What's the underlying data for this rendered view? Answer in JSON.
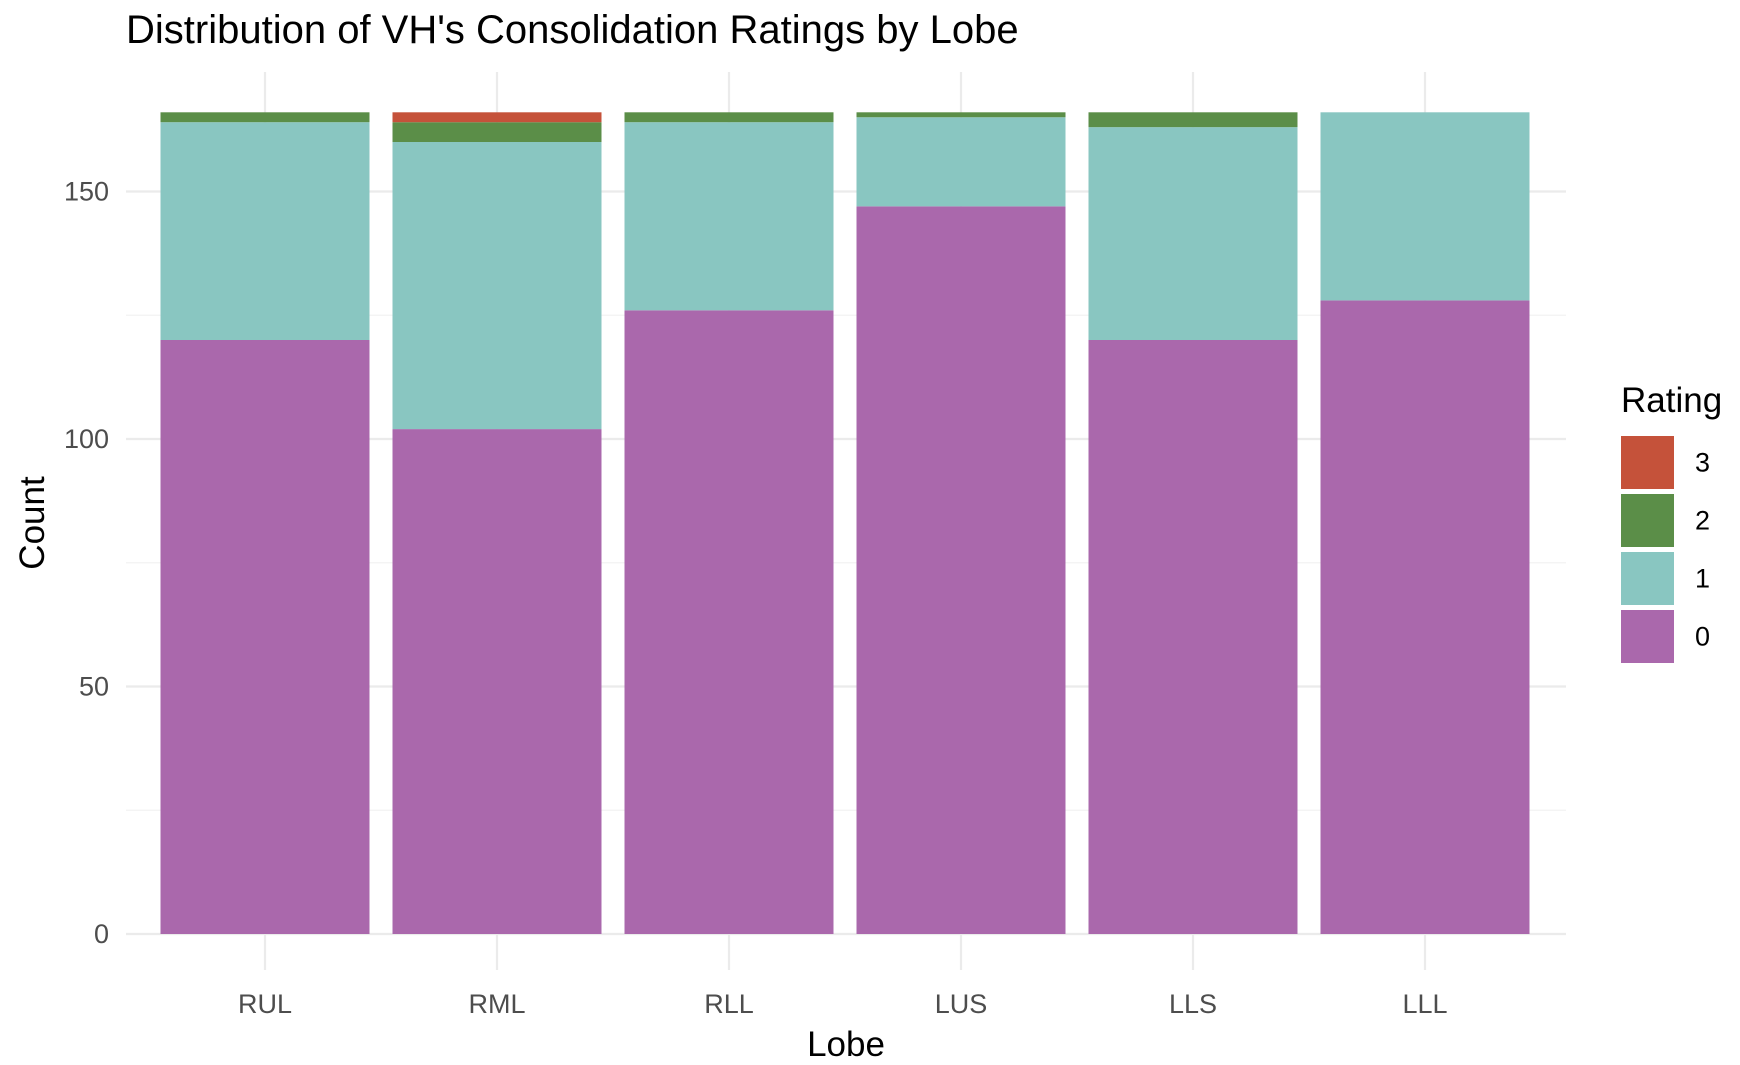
{
  "chart_data": {
    "type": "bar",
    "stacked": true,
    "title": "Distribution of VH's Consolidation Ratings by Lobe",
    "xlabel": "Lobe",
    "ylabel": "Count",
    "categories": [
      "RUL",
      "RML",
      "RLL",
      "LUS",
      "LLS",
      "LLL"
    ],
    "ylim": [
      0,
      166
    ],
    "yticks": [
      0,
      50,
      100,
      150
    ],
    "grid": true,
    "legend": {
      "title": "Rating",
      "position": "right"
    },
    "series": [
      {
        "name": "0",
        "color": "#AA68AC",
        "values": [
          120,
          102,
          126,
          147,
          120,
          128
        ]
      },
      {
        "name": "1",
        "color": "#89C6C1",
        "values": [
          44,
          58,
          38,
          18,
          43,
          38
        ]
      },
      {
        "name": "2",
        "color": "#5B8E48",
        "values": [
          2,
          4,
          2,
          1,
          3,
          0
        ]
      },
      {
        "name": "3",
        "color": "#C5523A",
        "values": [
          0,
          2,
          0,
          0,
          0,
          0
        ]
      }
    ]
  }
}
